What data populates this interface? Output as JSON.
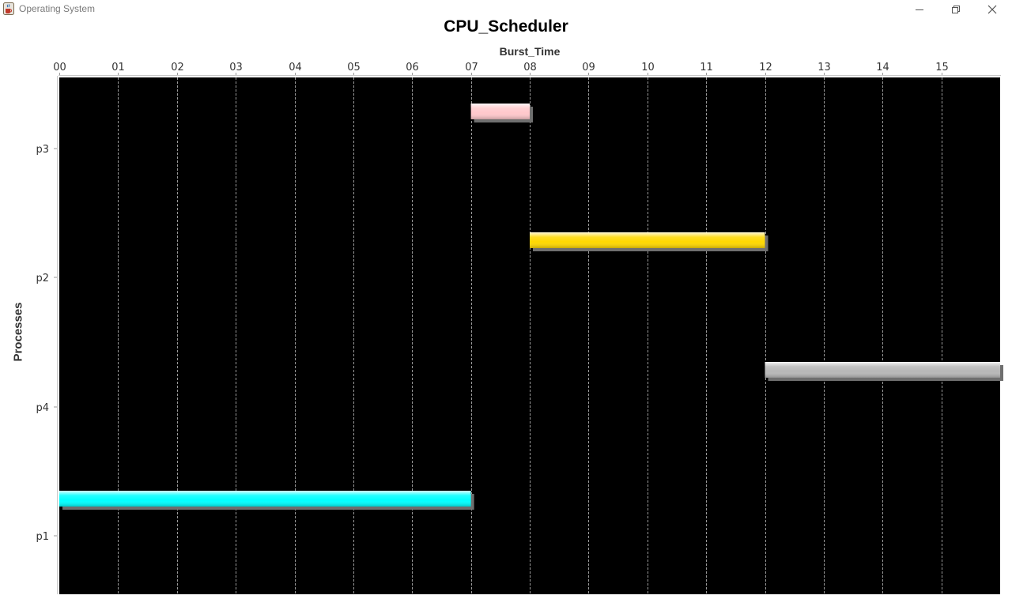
{
  "window": {
    "title": "Operating System",
    "icon": "java-cup-icon",
    "controls": [
      "minimize-icon",
      "restore-icon",
      "close-icon"
    ]
  },
  "chart_data": {
    "type": "gantt",
    "title": "CPU_Scheduler",
    "xlabel": "Burst_Time",
    "ylabel": "Processes",
    "xlim": [
      0,
      16
    ],
    "x_ticks": [
      "00",
      "01",
      "02",
      "03",
      "04",
      "05",
      "06",
      "07",
      "08",
      "09",
      "10",
      "11",
      "12",
      "13",
      "14",
      "15"
    ],
    "categories": [
      "p3",
      "p2",
      "p4",
      "p1"
    ],
    "tasks": [
      {
        "process": "p3",
        "start": 7,
        "end": 8,
        "color": "#ffc8cc"
      },
      {
        "process": "p2",
        "start": 8,
        "end": 12,
        "color": "#ffd800"
      },
      {
        "process": "p4",
        "start": 12,
        "end": 16,
        "color": "#b8b8b8"
      },
      {
        "process": "p1",
        "start": 0,
        "end": 7,
        "color": "#00ffff"
      }
    ],
    "grid": "vertical-dashed",
    "plot_background": "#000000",
    "legend": "none"
  }
}
